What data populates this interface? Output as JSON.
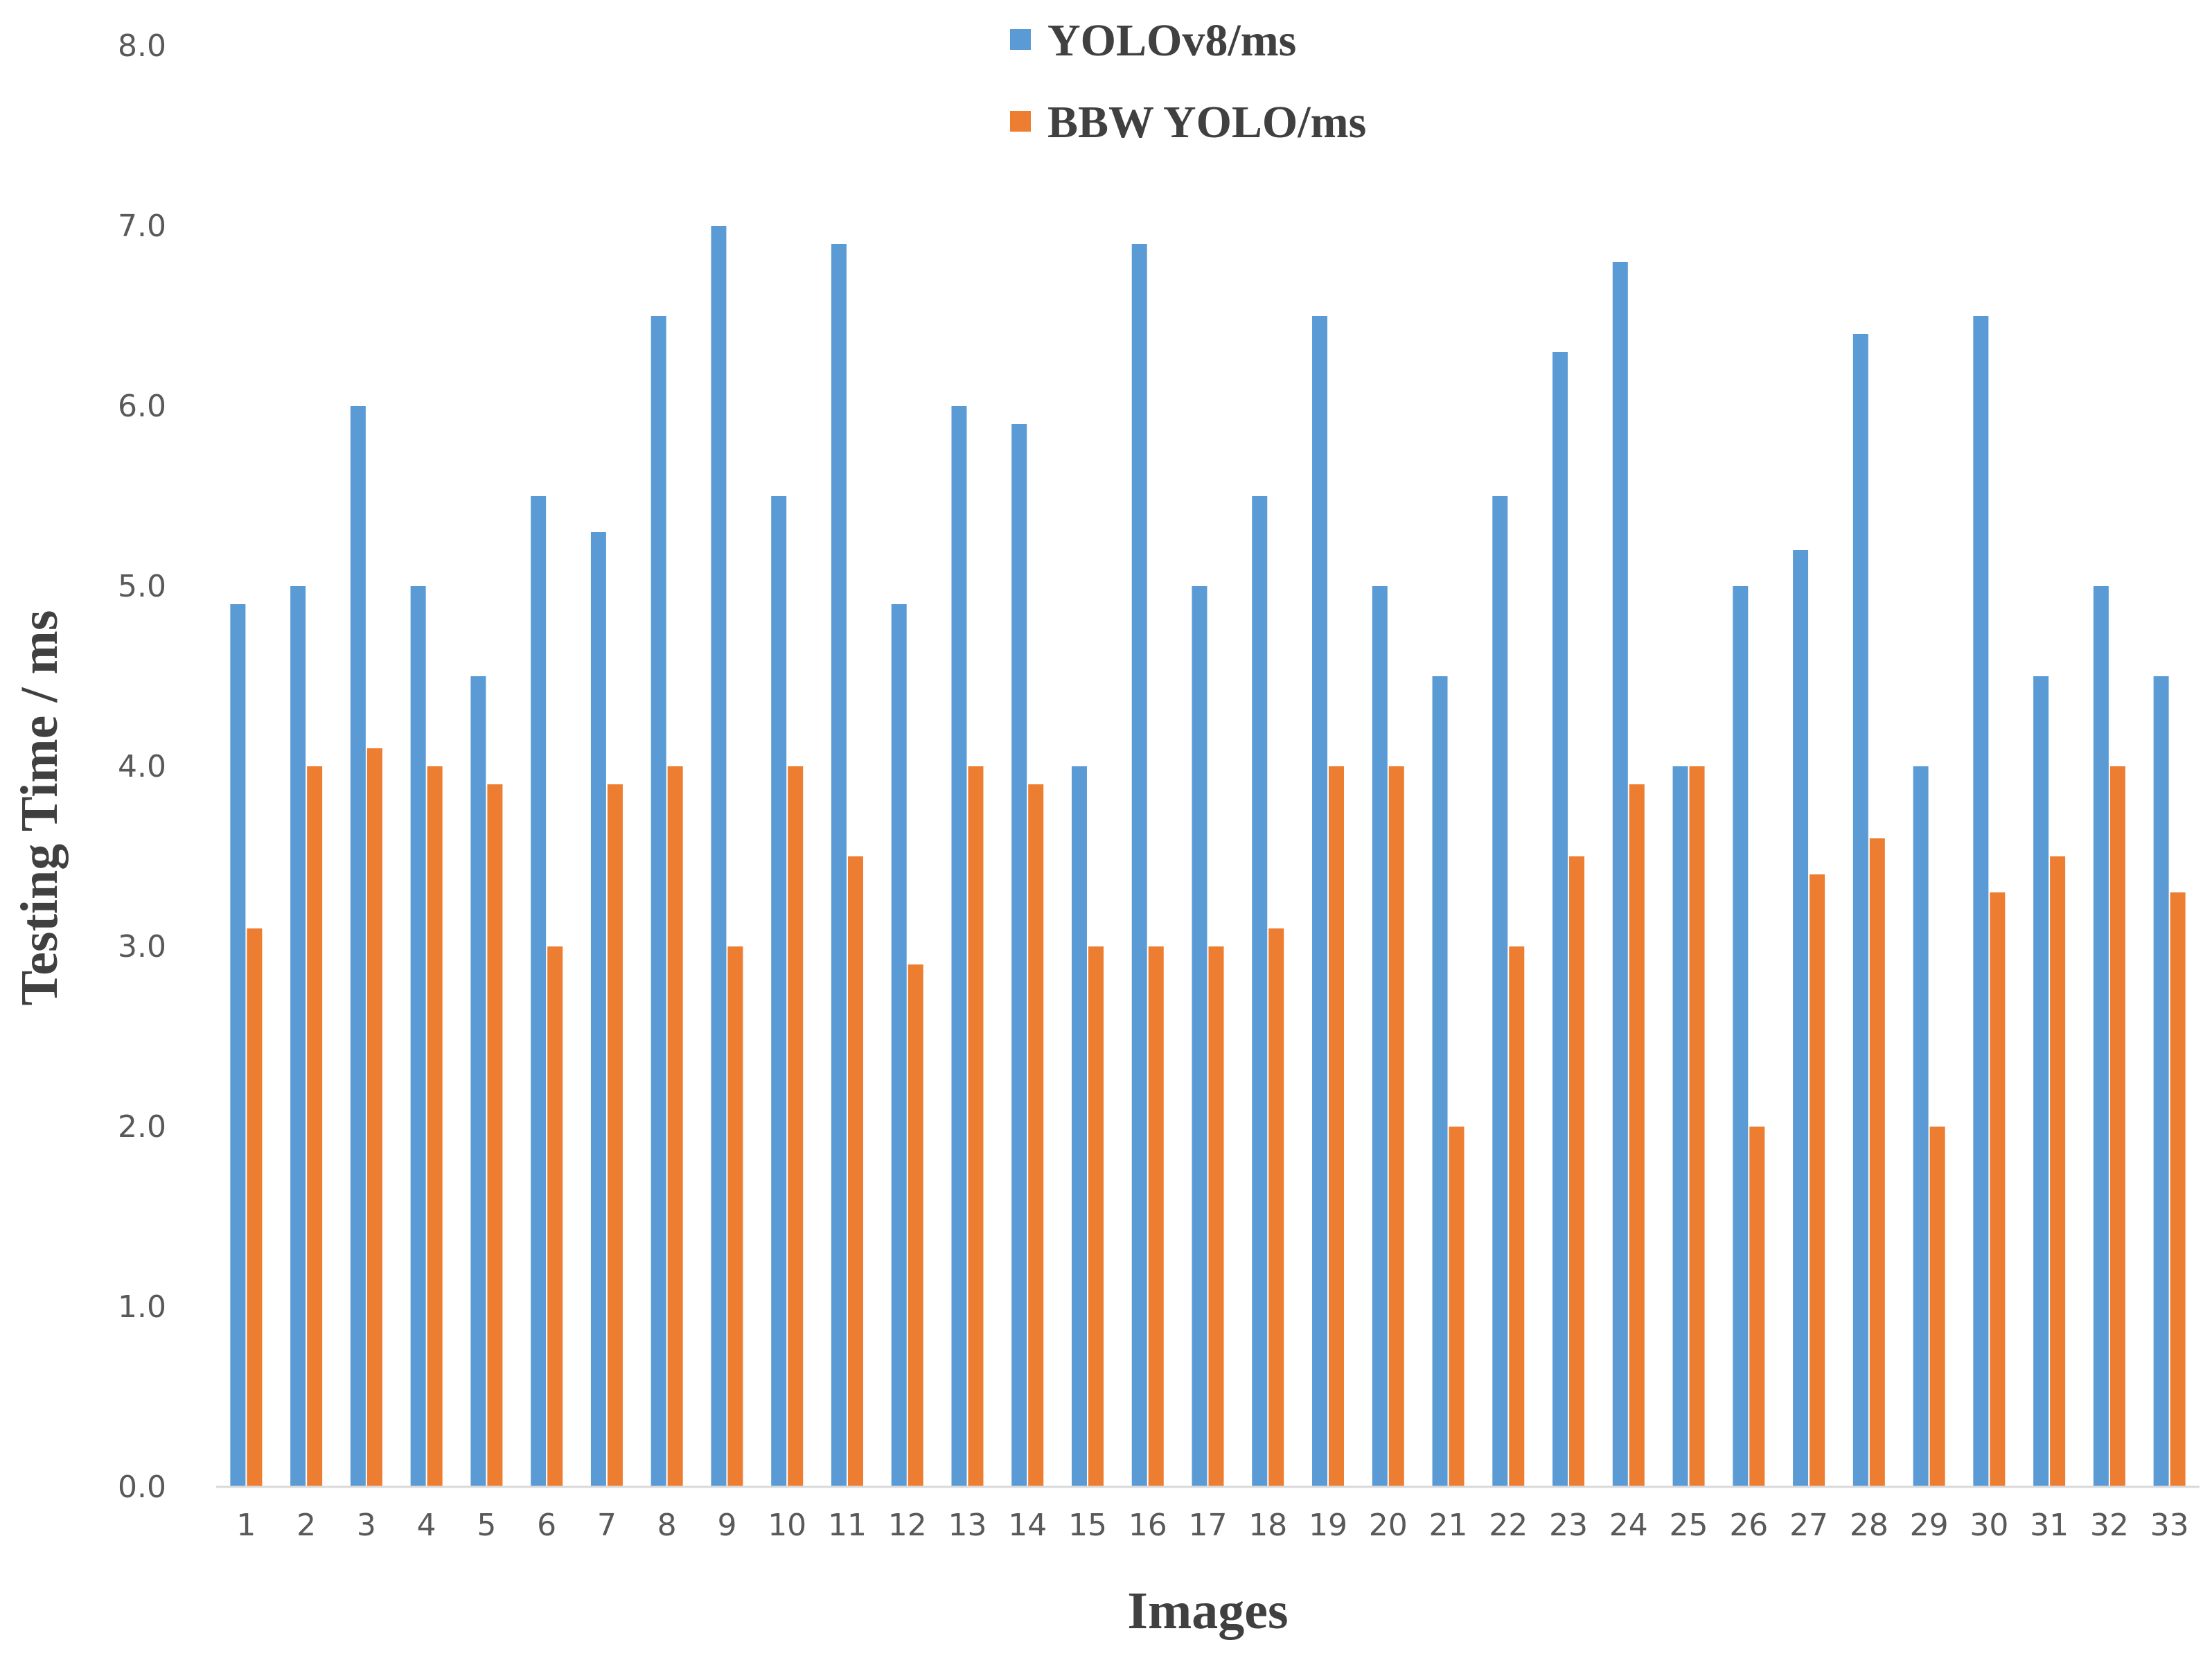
{
  "chart_data": {
    "type": "bar",
    "xlabel": "Images",
    "ylabel": "Testing Time / ms",
    "ylim": [
      0,
      8
    ],
    "yticks": [
      "0.0",
      "1.0",
      "2.0",
      "3.0",
      "4.0",
      "5.0",
      "6.0",
      "7.0",
      "8.0"
    ],
    "grid": false,
    "legend_position": "top-center",
    "categories": [
      "1",
      "2",
      "3",
      "4",
      "5",
      "6",
      "7",
      "8",
      "9",
      "10",
      "11",
      "12",
      "13",
      "14",
      "15",
      "16",
      "17",
      "18",
      "19",
      "20",
      "21",
      "22",
      "23",
      "24",
      "25",
      "26",
      "27",
      "28",
      "29",
      "30",
      "31",
      "32",
      "33"
    ],
    "series": [
      {
        "name": "YOLOv8/ms",
        "color": "#5b9bd5",
        "values": [
          4.9,
          5.0,
          6.0,
          5.0,
          4.5,
          5.5,
          5.3,
          6.5,
          7.0,
          5.5,
          6.9,
          4.9,
          6.0,
          5.9,
          4.0,
          6.9,
          5.0,
          5.5,
          6.5,
          5.0,
          4.5,
          5.5,
          6.3,
          6.8,
          4.0,
          5.0,
          5.2,
          6.4,
          4.0,
          6.5,
          4.5,
          5.0,
          4.5
        ]
      },
      {
        "name": "BBW YOLO/ms",
        "color": "#ed7d31",
        "values": [
          3.1,
          4.0,
          4.1,
          4.0,
          3.9,
          3.0,
          3.9,
          4.0,
          3.0,
          4.0,
          3.5,
          2.9,
          4.0,
          3.9,
          3.0,
          3.0,
          3.0,
          3.1,
          4.0,
          4.0,
          2.0,
          3.0,
          3.5,
          3.9,
          4.0,
          2.0,
          3.4,
          3.6,
          2.0,
          3.3,
          3.5,
          4.0,
          3.3
        ]
      }
    ]
  }
}
